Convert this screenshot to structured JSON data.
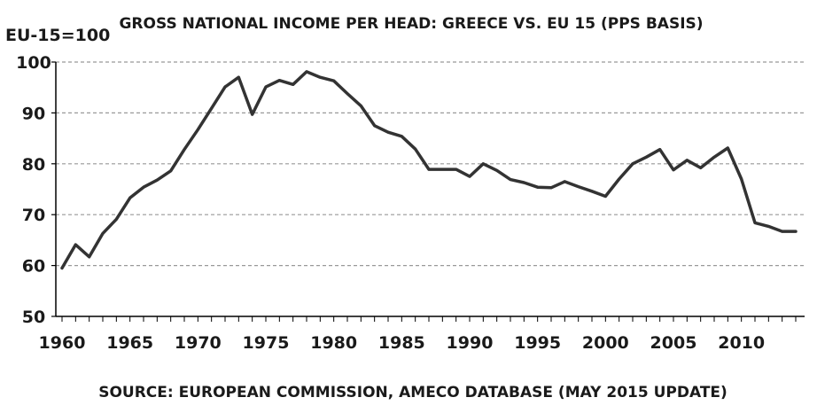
{
  "chart_data": {
    "type": "line",
    "title": "GROSS NATIONAL INCOME PER HEAD: GREECE VS. EU 15 (PPS BASIS)",
    "ylabel": "EU-15=100",
    "xlabel": "",
    "source": "SOURCE: EUROPEAN COMMISSION, AMECO DATABASE (MAY 2015 UPDATE)",
    "ylim": [
      50,
      100
    ],
    "xlim": [
      1960,
      2014
    ],
    "y_ticks": [
      100,
      90,
      80,
      70,
      60,
      50
    ],
    "x_ticks": [
      1960,
      1965,
      1970,
      1975,
      1980,
      1985,
      1990,
      1995,
      2000,
      2005,
      2010
    ],
    "grid": true,
    "line_color": "#333333",
    "grid_color": "#999999",
    "series": [
      {
        "name": "Greece GNI per head",
        "x": [
          1960,
          1961,
          1962,
          1963,
          1964,
          1965,
          1966,
          1967,
          1968,
          1969,
          1970,
          1971,
          1972,
          1973,
          1974,
          1975,
          1976,
          1977,
          1978,
          1979,
          1980,
          1981,
          1982,
          1983,
          1984,
          1985,
          1986,
          1987,
          1988,
          1989,
          1990,
          1991,
          1992,
          1993,
          1994,
          1995,
          1996,
          1997,
          1998,
          1999,
          2000,
          2001,
          2002,
          2003,
          2004,
          2005,
          2006,
          2007,
          2008,
          2009,
          2010,
          2011,
          2012,
          2013,
          2014
        ],
        "values": [
          59.5,
          64.1,
          61.7,
          66.3,
          69.1,
          73.3,
          75.4,
          76.8,
          78.6,
          82.8,
          86.7,
          90.9,
          95.1,
          97.0,
          89.7,
          95.1,
          96.4,
          95.6,
          98.1,
          97.0,
          96.3,
          93.8,
          91.4,
          87.5,
          86.2,
          85.4,
          82.9,
          78.9,
          78.9,
          78.9,
          77.5,
          80.0,
          78.7,
          76.9,
          76.3,
          75.4,
          75.3,
          76.5,
          75.5,
          74.6,
          73.6,
          77.0,
          80.0,
          81.3,
          82.8,
          78.8,
          80.7,
          79.2,
          81.3,
          83.1,
          77.0,
          68.4,
          67.7,
          66.7,
          66.7
        ]
      }
    ]
  }
}
